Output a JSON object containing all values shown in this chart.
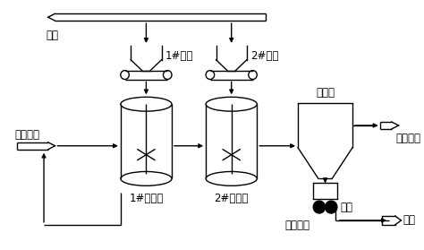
{
  "bg_color": "#ffffff",
  "line_color": "#000000",
  "labels": {
    "zinc_powder": "锌粉",
    "reactor1_zinc": "1#锌粉",
    "reactor2_zinc": "2#锌粉",
    "leach_liquid": "浸出后液",
    "reactor1": "1#反应器",
    "reactor2": "2#反应器",
    "densifier": "浓密机",
    "cobalt_removal": "除钴工段",
    "solid_bottom": "含固底流",
    "switch": "开关",
    "copper_slag": "铜渣"
  },
  "font_size": 8.5
}
